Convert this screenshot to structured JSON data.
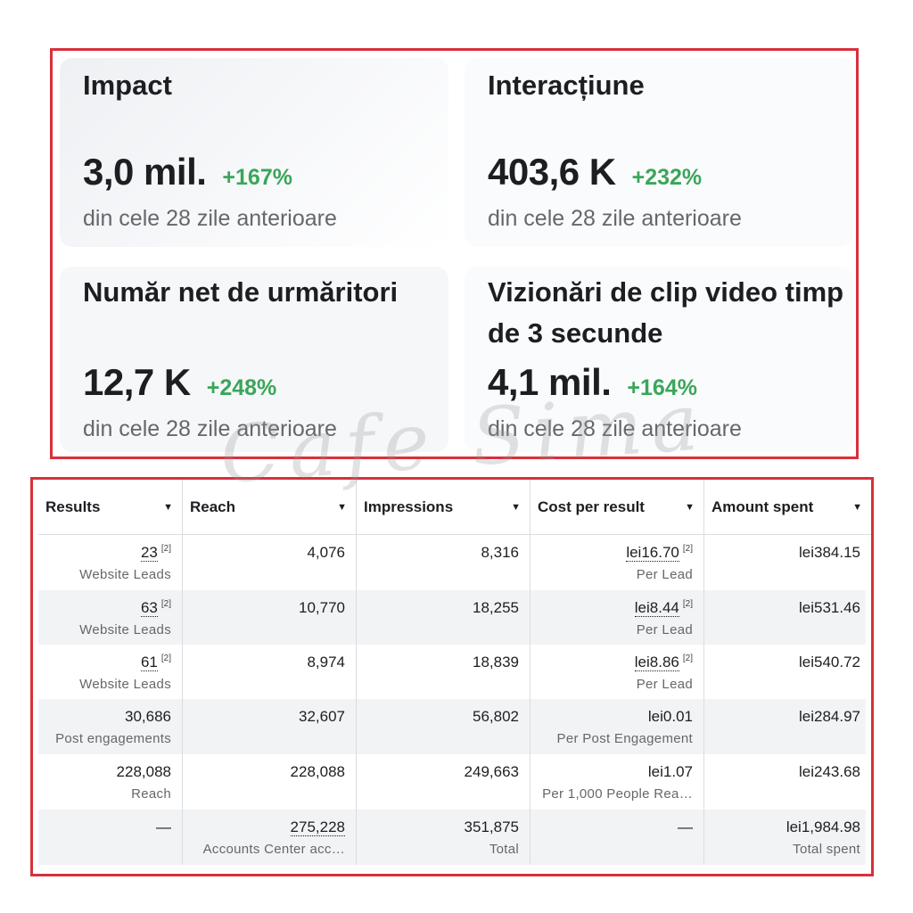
{
  "stats": [
    {
      "title": "Impact",
      "value": "3,0 mil.",
      "change": "+167%",
      "sub": "din cele 28 zile anterioare"
    },
    {
      "title": "Interacțiune",
      "value": "403,6 K",
      "change": "+232%",
      "sub": "din cele 28 zile anterioare"
    },
    {
      "title": "Număr net de urmăritori",
      "value": "12,7 K",
      "change": "+248%",
      "sub": "din cele 28 zile anterioare"
    },
    {
      "title": "Vizionări de clip video timp de 3 secunde",
      "value": "4,1 mil.",
      "change": "+164%",
      "sub": "din cele 28 zile anterioare"
    }
  ],
  "watermark": "Cafe Sima",
  "table": {
    "headers": [
      "Results",
      "Reach",
      "Impressions",
      "Cost per result",
      "Amount spent"
    ],
    "sup": "[2]",
    "rows": [
      {
        "results": "23",
        "results_sub": "Website Leads",
        "reach": "4,076",
        "reach_sub": "",
        "impressions": "8,316",
        "impressions_sub": "",
        "cost": "lei16.70",
        "cost_sub": "Per Lead",
        "spent": "lei384.15",
        "spent_sub": ""
      },
      {
        "results": "63",
        "results_sub": "Website Leads",
        "reach": "10,770",
        "reach_sub": "",
        "impressions": "18,255",
        "impressions_sub": "",
        "cost": "lei8.44",
        "cost_sub": "Per Lead",
        "spent": "lei531.46",
        "spent_sub": ""
      },
      {
        "results": "61",
        "results_sub": "Website Leads",
        "reach": "8,974",
        "reach_sub": "",
        "impressions": "18,839",
        "impressions_sub": "",
        "cost": "lei8.86",
        "cost_sub": "Per Lead",
        "spent": "lei540.72",
        "spent_sub": ""
      },
      {
        "results": "30,686",
        "results_sub": "Post engagements",
        "reach": "32,607",
        "reach_sub": "",
        "impressions": "56,802",
        "impressions_sub": "",
        "cost": "lei0.01",
        "cost_sub": "Per Post Engagement",
        "spent": "lei284.97",
        "spent_sub": ""
      },
      {
        "results": "228,088",
        "results_sub": "Reach",
        "reach": "228,088",
        "reach_sub": "",
        "impressions": "249,663",
        "impressions_sub": "",
        "cost": "lei1.07",
        "cost_sub": "Per 1,000 People Rea…",
        "spent": "lei243.68",
        "spent_sub": ""
      },
      {
        "results": "—",
        "results_sub": "",
        "reach": "275,228",
        "reach_sub": "Accounts Center acc…",
        "impressions": "351,875",
        "impressions_sub": "Total",
        "cost": "—",
        "cost_sub": "",
        "spent": "lei1,984.98",
        "spent_sub": "Total spent"
      }
    ]
  }
}
